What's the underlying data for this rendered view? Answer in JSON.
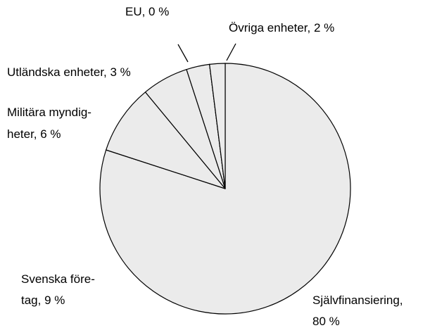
{
  "chart_data": {
    "type": "pie",
    "categories": [
      [
        "Självfinansiering,",
        "80 %"
      ],
      [
        "Svenska före-",
        "tag, 9 %"
      ],
      [
        "Militära myndig-",
        "heter, 6 %"
      ],
      [
        "Utländska enheter, 3 %"
      ],
      [
        "EU, 0 %"
      ],
      [
        "Övriga enheter, 2 %"
      ]
    ],
    "values": [
      80,
      9,
      6,
      3,
      0,
      2
    ],
    "color": "#ebebeb"
  }
}
